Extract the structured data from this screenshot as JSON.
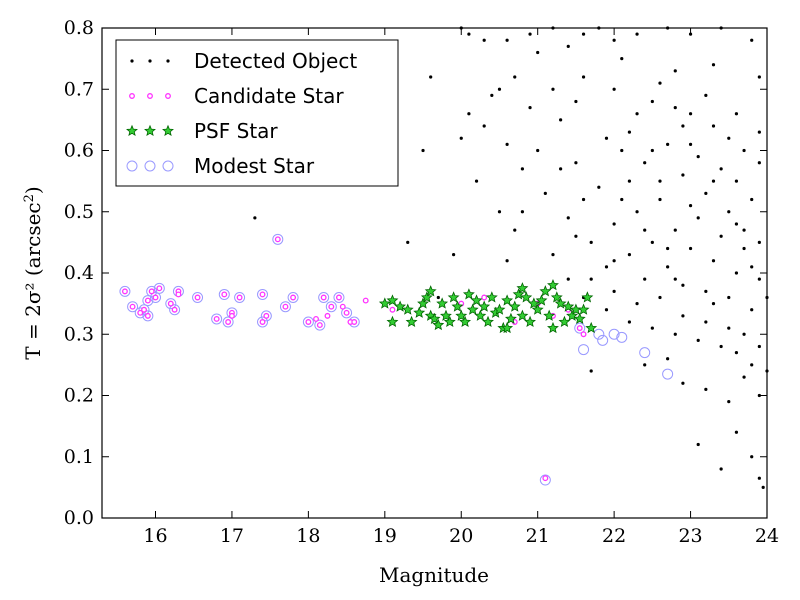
{
  "chart_data": {
    "type": "scatter",
    "xlabel": "Magnitude",
    "ylabel_prefix": "T = 2σ² (arcsec",
    "ylabel_sup": "2",
    "ylabel_suffix": ")",
    "xlim": [
      15.3,
      24.0
    ],
    "ylim": [
      0.0,
      0.8
    ],
    "x_ticks": [
      16,
      17,
      18,
      19,
      20,
      21,
      22,
      23,
      24
    ],
    "y_ticks": [
      0.0,
      0.1,
      0.2,
      0.3,
      0.4,
      0.5,
      0.6,
      0.7,
      0.8
    ],
    "legend_position": "top-left",
    "series": [
      {
        "name": "Detected Object",
        "marker": "dot",
        "color": "#000000",
        "points": [
          [
            17.3,
            0.49
          ],
          [
            17.6,
            0.455
          ],
          [
            19.3,
            0.45
          ],
          [
            19.7,
            0.36
          ],
          [
            19.9,
            0.43
          ],
          [
            20.0,
            0.8
          ],
          [
            20.1,
            0.79
          ],
          [
            20.3,
            0.78
          ],
          [
            20.5,
            0.7
          ],
          [
            20.6,
            0.78
          ],
          [
            20.7,
            0.72
          ],
          [
            20.9,
            0.79
          ],
          [
            21.0,
            0.76
          ],
          [
            21.2,
            0.8
          ],
          [
            21.4,
            0.77
          ],
          [
            21.6,
            0.79
          ],
          [
            21.8,
            0.8
          ],
          [
            22.0,
            0.78
          ],
          [
            22.3,
            0.79
          ],
          [
            22.7,
            0.8
          ],
          [
            23.0,
            0.79
          ],
          [
            23.4,
            0.8
          ],
          [
            23.8,
            0.78
          ],
          [
            23.9,
            0.72
          ],
          [
            21.3,
            0.65
          ],
          [
            21.6,
            0.72
          ],
          [
            21.9,
            0.62
          ],
          [
            22.0,
            0.7
          ],
          [
            22.1,
            0.75
          ],
          [
            22.2,
            0.63
          ],
          [
            22.4,
            0.58
          ],
          [
            22.5,
            0.68
          ],
          [
            22.6,
            0.71
          ],
          [
            22.7,
            0.61
          ],
          [
            22.8,
            0.73
          ],
          [
            22.9,
            0.56
          ],
          [
            23.0,
            0.66
          ],
          [
            23.1,
            0.59
          ],
          [
            23.2,
            0.69
          ],
          [
            23.3,
            0.64
          ],
          [
            23.4,
            0.57
          ],
          [
            23.5,
            0.62
          ],
          [
            23.6,
            0.55
          ],
          [
            23.7,
            0.6
          ],
          [
            23.8,
            0.52
          ],
          [
            23.9,
            0.58
          ],
          [
            20.3,
            0.64
          ],
          [
            20.6,
            0.61
          ],
          [
            20.8,
            0.57
          ],
          [
            20.5,
            0.5
          ],
          [
            20.7,
            0.47
          ],
          [
            20.2,
            0.55
          ],
          [
            20.9,
            0.67
          ],
          [
            21.1,
            0.53
          ],
          [
            21.4,
            0.49
          ],
          [
            21.5,
            0.58
          ],
          [
            21.7,
            0.45
          ],
          [
            21.8,
            0.54
          ],
          [
            21.9,
            0.41
          ],
          [
            22.0,
            0.48
          ],
          [
            22.1,
            0.52
          ],
          [
            22.2,
            0.43
          ],
          [
            22.3,
            0.5
          ],
          [
            22.4,
            0.39
          ],
          [
            22.5,
            0.45
          ],
          [
            22.6,
            0.52
          ],
          [
            22.7,
            0.41
          ],
          [
            22.8,
            0.47
          ],
          [
            22.9,
            0.38
          ],
          [
            23.0,
            0.44
          ],
          [
            23.1,
            0.49
          ],
          [
            23.2,
            0.37
          ],
          [
            23.3,
            0.42
          ],
          [
            23.4,
            0.46
          ],
          [
            23.5,
            0.36
          ],
          [
            23.6,
            0.4
          ],
          [
            23.7,
            0.44
          ],
          [
            23.8,
            0.34
          ],
          [
            23.9,
            0.39
          ],
          [
            24.0,
            0.36
          ],
          [
            21.7,
            0.39
          ],
          [
            21.9,
            0.34
          ],
          [
            22.0,
            0.37
          ],
          [
            22.2,
            0.32
          ],
          [
            22.3,
            0.35
          ],
          [
            22.5,
            0.31
          ],
          [
            22.6,
            0.36
          ],
          [
            22.8,
            0.3
          ],
          [
            22.9,
            0.33
          ],
          [
            23.1,
            0.29
          ],
          [
            23.2,
            0.32
          ],
          [
            23.4,
            0.28
          ],
          [
            23.5,
            0.31
          ],
          [
            23.6,
            0.27
          ],
          [
            23.7,
            0.3
          ],
          [
            23.8,
            0.25
          ],
          [
            23.9,
            0.28
          ],
          [
            24.0,
            0.24
          ],
          [
            23.2,
            0.21
          ],
          [
            23.5,
            0.19
          ],
          [
            23.7,
            0.23
          ],
          [
            23.9,
            0.2
          ],
          [
            22.9,
            0.22
          ],
          [
            23.1,
            0.12
          ],
          [
            23.4,
            0.08
          ],
          [
            23.6,
            0.14
          ],
          [
            23.8,
            0.1
          ],
          [
            23.9,
            0.065
          ],
          [
            23.95,
            0.05
          ],
          [
            22.7,
            0.26
          ],
          [
            22.4,
            0.25
          ],
          [
            21.7,
            0.24
          ],
          [
            21.4,
            0.39
          ],
          [
            21.6,
            0.36
          ],
          [
            22.1,
            0.6
          ],
          [
            22.3,
            0.66
          ],
          [
            22.6,
            0.55
          ],
          [
            22.9,
            0.64
          ],
          [
            23.2,
            0.53
          ],
          [
            23.5,
            0.5
          ],
          [
            23.7,
            0.47
          ],
          [
            23.9,
            0.45
          ],
          [
            22.4,
            0.47
          ],
          [
            22.7,
            0.44
          ],
          [
            23.0,
            0.51
          ],
          [
            23.3,
            0.55
          ],
          [
            23.6,
            0.48
          ],
          [
            21.2,
            0.7
          ],
          [
            21.5,
            0.68
          ],
          [
            20.4,
            0.69
          ],
          [
            20.1,
            0.66
          ],
          [
            21.0,
            0.6
          ],
          [
            21.3,
            0.57
          ],
          [
            21.6,
            0.52
          ],
          [
            20.8,
            0.5
          ],
          [
            19.5,
            0.6
          ],
          [
            19.6,
            0.72
          ],
          [
            20.0,
            0.62
          ],
          [
            20.6,
            0.42
          ],
          [
            21.2,
            0.43
          ],
          [
            21.5,
            0.46
          ],
          [
            22.0,
            0.42
          ],
          [
            22.8,
            0.39
          ],
          [
            23.3,
            0.35
          ],
          [
            23.8,
            0.41
          ],
          [
            22.5,
            0.6
          ],
          [
            22.8,
            0.67
          ],
          [
            23.0,
            0.61
          ],
          [
            23.3,
            0.74
          ],
          [
            23.6,
            0.66
          ],
          [
            23.9,
            0.63
          ],
          [
            22.2,
            0.55
          ]
        ]
      },
      {
        "name": "Candidate Star",
        "marker": "small-circle",
        "color": "#ff33ff",
        "points": [
          [
            15.6,
            0.37
          ],
          [
            15.7,
            0.345
          ],
          [
            15.8,
            0.335
          ],
          [
            15.85,
            0.34
          ],
          [
            15.9,
            0.355
          ],
          [
            15.95,
            0.37
          ],
          [
            16.0,
            0.36
          ],
          [
            16.05,
            0.375
          ],
          [
            15.9,
            0.33
          ],
          [
            16.2,
            0.35
          ],
          [
            16.25,
            0.34
          ],
          [
            16.3,
            0.37
          ],
          [
            16.3,
            0.365
          ],
          [
            16.55,
            0.36
          ],
          [
            16.8,
            0.325
          ],
          [
            16.9,
            0.365
          ],
          [
            16.95,
            0.32
          ],
          [
            17.0,
            0.335
          ],
          [
            17.0,
            0.33
          ],
          [
            17.1,
            0.36
          ],
          [
            17.4,
            0.32
          ],
          [
            17.45,
            0.33
          ],
          [
            17.4,
            0.365
          ],
          [
            17.6,
            0.455
          ],
          [
            17.7,
            0.345
          ],
          [
            17.8,
            0.36
          ],
          [
            18.0,
            0.32
          ],
          [
            18.1,
            0.325
          ],
          [
            18.15,
            0.315
          ],
          [
            18.2,
            0.36
          ],
          [
            18.25,
            0.33
          ],
          [
            18.3,
            0.345
          ],
          [
            18.4,
            0.36
          ],
          [
            18.45,
            0.345
          ],
          [
            18.5,
            0.335
          ],
          [
            18.55,
            0.32
          ],
          [
            18.6,
            0.32
          ],
          [
            18.75,
            0.355
          ],
          [
            19.1,
            0.34
          ],
          [
            19.6,
            0.33
          ],
          [
            20.0,
            0.35
          ],
          [
            20.3,
            0.36
          ],
          [
            20.5,
            0.34
          ],
          [
            20.7,
            0.32
          ],
          [
            21.0,
            0.35
          ],
          [
            21.2,
            0.33
          ],
          [
            21.4,
            0.34
          ],
          [
            21.55,
            0.31
          ],
          [
            21.6,
            0.3
          ],
          [
            21.1,
            0.065
          ]
        ]
      },
      {
        "name": "PSF Star",
        "marker": "star",
        "color": "#2ca02c",
        "points": [
          [
            19.0,
            0.35
          ],
          [
            19.1,
            0.355
          ],
          [
            19.2,
            0.345
          ],
          [
            19.3,
            0.34
          ],
          [
            19.35,
            0.32
          ],
          [
            19.45,
            0.335
          ],
          [
            19.5,
            0.35
          ],
          [
            19.55,
            0.36
          ],
          [
            19.6,
            0.37
          ],
          [
            19.6,
            0.33
          ],
          [
            19.65,
            0.325
          ],
          [
            19.7,
            0.315
          ],
          [
            19.75,
            0.35
          ],
          [
            19.8,
            0.33
          ],
          [
            19.85,
            0.32
          ],
          [
            19.9,
            0.36
          ],
          [
            19.95,
            0.345
          ],
          [
            20.0,
            0.33
          ],
          [
            20.05,
            0.32
          ],
          [
            20.1,
            0.365
          ],
          [
            20.15,
            0.34
          ],
          [
            20.2,
            0.355
          ],
          [
            20.25,
            0.33
          ],
          [
            20.3,
            0.345
          ],
          [
            20.35,
            0.32
          ],
          [
            20.4,
            0.36
          ],
          [
            20.45,
            0.335
          ],
          [
            20.5,
            0.34
          ],
          [
            20.55,
            0.31
          ],
          [
            20.6,
            0.355
          ],
          [
            20.65,
            0.325
          ],
          [
            20.7,
            0.345
          ],
          [
            20.75,
            0.365
          ],
          [
            20.8,
            0.33
          ],
          [
            20.85,
            0.36
          ],
          [
            20.9,
            0.32
          ],
          [
            20.95,
            0.35
          ],
          [
            21.0,
            0.34
          ],
          [
            21.05,
            0.355
          ],
          [
            21.1,
            0.37
          ],
          [
            21.15,
            0.33
          ],
          [
            21.2,
            0.38
          ],
          [
            21.25,
            0.36
          ],
          [
            21.3,
            0.35
          ],
          [
            21.35,
            0.32
          ],
          [
            21.4,
            0.345
          ],
          [
            21.45,
            0.33
          ],
          [
            21.5,
            0.34
          ],
          [
            21.55,
            0.325
          ],
          [
            21.6,
            0.34
          ],
          [
            21.65,
            0.36
          ],
          [
            21.7,
            0.31
          ],
          [
            19.1,
            0.32
          ],
          [
            20.6,
            0.31
          ],
          [
            20.8,
            0.375
          ],
          [
            21.2,
            0.31
          ]
        ]
      },
      {
        "name": "Modest Star",
        "marker": "open-circle",
        "color": "#9999ff",
        "points": [
          [
            15.6,
            0.37
          ],
          [
            15.7,
            0.345
          ],
          [
            15.8,
            0.335
          ],
          [
            15.85,
            0.34
          ],
          [
            15.9,
            0.355
          ],
          [
            15.95,
            0.37
          ],
          [
            16.0,
            0.36
          ],
          [
            16.05,
            0.375
          ],
          [
            15.9,
            0.33
          ],
          [
            16.2,
            0.35
          ],
          [
            16.25,
            0.34
          ],
          [
            16.3,
            0.37
          ],
          [
            16.55,
            0.36
          ],
          [
            16.8,
            0.325
          ],
          [
            16.9,
            0.365
          ],
          [
            16.95,
            0.32
          ],
          [
            17.0,
            0.335
          ],
          [
            17.1,
            0.36
          ],
          [
            17.4,
            0.32
          ],
          [
            17.45,
            0.33
          ],
          [
            17.4,
            0.365
          ],
          [
            17.6,
            0.455
          ],
          [
            17.7,
            0.345
          ],
          [
            17.8,
            0.36
          ],
          [
            18.0,
            0.32
          ],
          [
            18.15,
            0.315
          ],
          [
            18.2,
            0.36
          ],
          [
            18.3,
            0.345
          ],
          [
            18.4,
            0.36
          ],
          [
            18.5,
            0.335
          ],
          [
            18.6,
            0.32
          ],
          [
            21.55,
            0.31
          ],
          [
            21.6,
            0.275
          ],
          [
            21.8,
            0.3
          ],
          [
            21.85,
            0.29
          ],
          [
            22.0,
            0.3
          ],
          [
            22.1,
            0.295
          ],
          [
            22.4,
            0.27
          ],
          [
            22.7,
            0.235
          ],
          [
            21.1,
            0.062
          ]
        ]
      }
    ]
  }
}
